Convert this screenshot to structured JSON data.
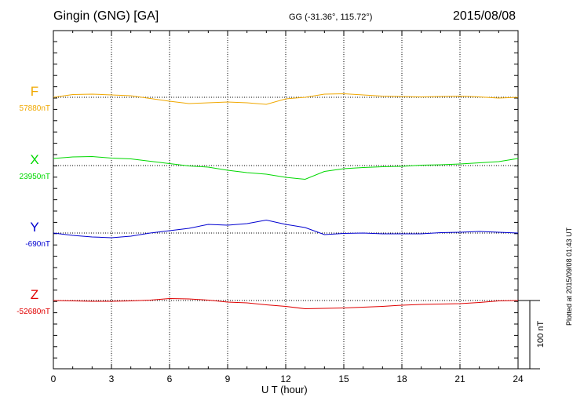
{
  "header": {
    "station": "Gingin (GNG)  [GA]",
    "coords": "GG (-31.36°, 115.72°)",
    "date": "2015/08/08"
  },
  "plotted_note": "Plotted at 2015/09/08 01:43 UT",
  "chart_data": {
    "type": "line",
    "title": "Gingin (GNG)  [GA]",
    "xlabel": "U T (hour)",
    "xlim": [
      0,
      24
    ],
    "xticks": [
      "0",
      "3",
      "6",
      "9",
      "12",
      "15",
      "18",
      "21",
      "24"
    ],
    "grid": true,
    "scale_bar": {
      "label": "100 nT",
      "value_nT": 100
    },
    "series": [
      {
        "name": "F",
        "baseline_label": "57880nT",
        "baseline_nT": 57880,
        "color": "#f0a800",
        "x": [
          0,
          1,
          2,
          3,
          4,
          5,
          6,
          7,
          8,
          9,
          10,
          11,
          12,
          13,
          14,
          15,
          16,
          17,
          18,
          19,
          20,
          21,
          22,
          23,
          24
        ],
        "y": [
          57880,
          57887,
          57888,
          57886,
          57884,
          57877,
          57870,
          57864,
          57866,
          57868,
          57866,
          57862,
          57876,
          57880,
          57888,
          57889,
          57886,
          57883,
          57882,
          57881,
          57882,
          57883,
          57881,
          57878,
          57880
        ]
      },
      {
        "name": "X",
        "baseline_label": "23950nT",
        "baseline_nT": 23950,
        "color": "#00d800",
        "x": [
          0,
          1,
          2,
          3,
          4,
          5,
          6,
          7,
          8,
          9,
          10,
          11,
          12,
          13,
          14,
          15,
          16,
          17,
          18,
          19,
          20,
          21,
          22,
          23,
          24
        ],
        "y": [
          23968,
          23972,
          23973,
          23969,
          23967,
          23961,
          23955,
          23949,
          23946,
          23938,
          23932,
          23928,
          23920,
          23915,
          23935,
          23942,
          23945,
          23947,
          23948,
          23951,
          23952,
          23954,
          23957,
          23960,
          23968
        ]
      },
      {
        "name": "Y",
        "baseline_label": "-690nT",
        "baseline_nT": -690,
        "color": "#0000d0",
        "x": [
          0,
          1,
          2,
          3,
          4,
          5,
          6,
          7,
          8,
          9,
          10,
          11,
          12,
          13,
          14,
          15,
          16,
          17,
          18,
          19,
          20,
          21,
          22,
          23,
          24
        ],
        "y": [
          -690,
          -696,
          -700,
          -702,
          -698,
          -690,
          -684,
          -678,
          -668,
          -670,
          -666,
          -657,
          -668,
          -676,
          -694,
          -691,
          -690,
          -692,
          -692,
          -692,
          -689,
          -688,
          -686,
          -688,
          -690
        ]
      },
      {
        "name": "Z",
        "baseline_label": "-52680nT",
        "baseline_nT": -52680,
        "color": "#e00000",
        "x": [
          0,
          1,
          2,
          3,
          4,
          5,
          6,
          7,
          8,
          9,
          10,
          11,
          12,
          13,
          14,
          15,
          16,
          17,
          18,
          19,
          20,
          21,
          22,
          23,
          24
        ],
        "y": [
          -52680,
          -52681,
          -52682,
          -52682,
          -52681,
          -52679,
          -52675,
          -52676,
          -52679,
          -52684,
          -52686,
          -52691,
          -52695,
          -52701,
          -52700,
          -52699,
          -52697,
          -52695,
          -52692,
          -52690,
          -52689,
          -52688,
          -52685,
          -52681,
          -52680
        ]
      }
    ]
  }
}
